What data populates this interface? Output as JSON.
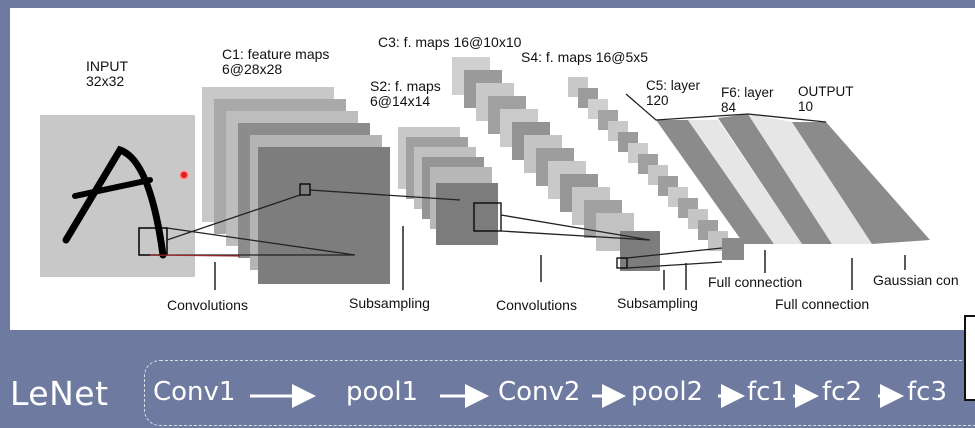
{
  "diagram": {
    "input_label": [
      "INPUT",
      "32x32"
    ],
    "c1_label": [
      "C1: feature maps",
      "6@28x28"
    ],
    "s2_label": [
      "S2: f. maps",
      "6@14x14"
    ],
    "c3_label": "C3: f. maps 16@10x10",
    "s4_label": "S4: f. maps 16@5x5",
    "c5_label": [
      "C5: layer",
      "120"
    ],
    "f6_label": [
      "F6: layer",
      "84"
    ],
    "output_label": [
      "OUTPUT",
      "10"
    ],
    "ops": {
      "conv1": "Convolutions",
      "sub1": "Subsampling",
      "conv2": "Convolutions",
      "sub2": "Subsampling",
      "fc1": "Full connection",
      "fc2": "Full connection",
      "gauss": "Gaussian con"
    }
  },
  "footer": {
    "title": "LeNet",
    "steps": [
      "Conv1",
      "pool1",
      "Conv2",
      "pool2",
      "fc1",
      "fc2",
      "fc3"
    ]
  },
  "colors": {
    "background": "#6e7aa0",
    "panel": "#ffffff",
    "input_gray": "#c8c8c8",
    "map_dark": "#808080"
  }
}
